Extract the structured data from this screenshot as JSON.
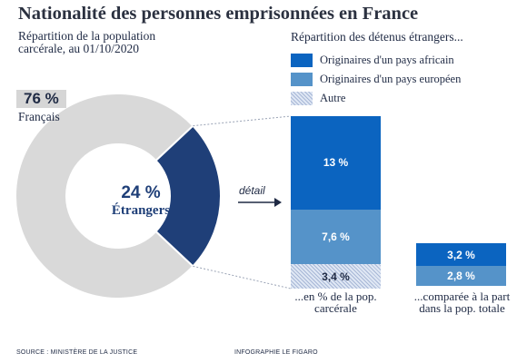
{
  "title": "Nationalité des personnes emprisonnées en France",
  "left_subtitle": "Répartition de la population carcérale, au 01/10/2020",
  "right_subtitle": "Répartition des détenus étrangers...",
  "detail_label": "détail",
  "source": "SOURCE : MINISTÈRE DE LA JUSTICE",
  "credit": "INFOGRAPHIE LE FIGARO",
  "colors": {
    "french": "#d9d9d9",
    "foreign": "#1f3f78",
    "african": "#0b64c0",
    "european": "#5593c9",
    "other": "#dfe7f4",
    "text": "#1f2a44"
  },
  "chart_data": [
    {
      "type": "pie",
      "slices": [
        {
          "label": "Français",
          "value": 76,
          "display": "76 %"
        },
        {
          "label": "Étrangers",
          "value": 24,
          "display": "24 %"
        }
      ]
    },
    {
      "type": "bar",
      "legend_position": "top",
      "series": [
        {
          "name": "Originaires d'un pays africain",
          "color": "#0b64c0",
          "style": "solid"
        },
        {
          "name": "Originaires d'un pays européen",
          "color": "#5593c9",
          "style": "solid"
        },
        {
          "name": "Autre",
          "color": "#dfe7f4",
          "style": "hatched"
        }
      ],
      "bars": [
        {
          "caption": "...en % de la pop. carcérale",
          "values": [
            13,
            7.6,
            3.4
          ],
          "labels": [
            "13 %",
            "7,6 %",
            "3,4 %"
          ]
        },
        {
          "caption": "...comparée à la part dans la pop. totale",
          "values": [
            3.2,
            2.8
          ],
          "labels": [
            "3,2 %",
            "2,8 %"
          ]
        }
      ]
    }
  ]
}
